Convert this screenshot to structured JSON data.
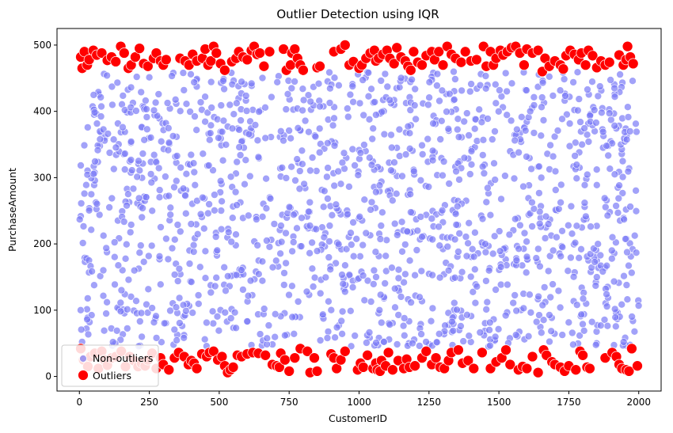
{
  "chart_data": {
    "type": "scatter",
    "title": "Outlier Detection using IQR",
    "xlabel": "CustomerID",
    "ylabel": "PurchaseAmount",
    "xlim": [
      -80,
      2080
    ],
    "ylim": [
      -22,
      525
    ],
    "x_ticks": [
      0,
      250,
      500,
      750,
      1000,
      1250,
      1500,
      1750,
      2000
    ],
    "y_ticks": [
      0,
      100,
      200,
      300,
      400,
      500
    ],
    "grid": false,
    "legend_placement": "lower-left",
    "series": [
      {
        "name": "Non-outliers",
        "color": "#7b7bf7",
        "generated_points": {
          "count": 1540,
          "x_range": [
            1,
            2000
          ],
          "y_range": [
            45,
            460
          ],
          "distribution": "uniform"
        }
      },
      {
        "name": "Outliers",
        "color": "#ff0000",
        "points": [
          [
            5,
            482
          ],
          [
            10,
            465
          ],
          [
            18,
            490
          ],
          [
            28,
            470
          ],
          [
            35,
            478
          ],
          [
            50,
            492
          ],
          [
            62,
            485
          ],
          [
            80,
            488
          ],
          [
            100,
            477
          ],
          [
            115,
            482
          ],
          [
            130,
            475
          ],
          [
            148,
            498
          ],
          [
            160,
            488
          ],
          [
            175,
            465
          ],
          [
            185,
            470
          ],
          [
            200,
            482
          ],
          [
            215,
            495
          ],
          [
            230,
            472
          ],
          [
            245,
            468
          ],
          [
            265,
            480
          ],
          [
            275,
            488
          ],
          [
            290,
            476
          ],
          [
            300,
            470
          ],
          [
            310,
            478
          ],
          [
            360,
            480
          ],
          [
            378,
            476
          ],
          [
            392,
            470
          ],
          [
            405,
            486
          ],
          [
            420,
            476
          ],
          [
            440,
            480
          ],
          [
            450,
            494
          ],
          [
            460,
            470
          ],
          [
            470,
            476
          ],
          [
            480,
            498
          ],
          [
            490,
            488
          ],
          [
            505,
            472
          ],
          [
            520,
            462
          ],
          [
            545,
            475
          ],
          [
            560,
            480
          ],
          [
            570,
            490
          ],
          [
            585,
            482
          ],
          [
            600,
            478
          ],
          [
            615,
            492
          ],
          [
            625,
            498
          ],
          [
            635,
            486
          ],
          [
            645,
            488
          ],
          [
            660,
            468
          ],
          [
            680,
            490
          ],
          [
            730,
            494
          ],
          [
            740,
            462
          ],
          [
            755,
            470
          ],
          [
            760,
            488
          ],
          [
            770,
            494
          ],
          [
            780,
            480
          ],
          [
            790,
            470
          ],
          [
            800,
            462
          ],
          [
            850,
            466
          ],
          [
            860,
            468
          ],
          [
            910,
            490
          ],
          [
            935,
            494
          ],
          [
            950,
            500
          ],
          [
            965,
            470
          ],
          [
            980,
            475
          ],
          [
            1000,
            465
          ],
          [
            1010,
            470
          ],
          [
            1025,
            480
          ],
          [
            1040,
            488
          ],
          [
            1055,
            492
          ],
          [
            1060,
            476
          ],
          [
            1070,
            480
          ],
          [
            1085,
            486
          ],
          [
            1100,
            492
          ],
          [
            1110,
            480
          ],
          [
            1125,
            472
          ],
          [
            1135,
            496
          ],
          [
            1150,
            482
          ],
          [
            1165,
            476
          ],
          [
            1175,
            468
          ],
          [
            1185,
            462
          ],
          [
            1195,
            490
          ],
          [
            1210,
            474
          ],
          [
            1225,
            470
          ],
          [
            1240,
            484
          ],
          [
            1260,
            490
          ],
          [
            1270,
            478
          ],
          [
            1285,
            490
          ],
          [
            1300,
            470
          ],
          [
            1315,
            498
          ],
          [
            1330,
            486
          ],
          [
            1345,
            480
          ],
          [
            1365,
            474
          ],
          [
            1380,
            490
          ],
          [
            1400,
            476
          ],
          [
            1420,
            478
          ],
          [
            1445,
            498
          ],
          [
            1455,
            468
          ],
          [
            1470,
            490
          ],
          [
            1480,
            470
          ],
          [
            1490,
            480
          ],
          [
            1505,
            492
          ],
          [
            1515,
            485
          ],
          [
            1530,
            490
          ],
          [
            1545,
            496
          ],
          [
            1560,
            498
          ],
          [
            1575,
            488
          ],
          [
            1590,
            470
          ],
          [
            1600,
            494
          ],
          [
            1620,
            488
          ],
          [
            1640,
            492
          ],
          [
            1655,
            460
          ],
          [
            1665,
            480
          ],
          [
            1680,
            468
          ],
          [
            1700,
            476
          ],
          [
            1720,
            470
          ],
          [
            1730,
            464
          ],
          [
            1740,
            484
          ],
          [
            1755,
            492
          ],
          [
            1770,
            486
          ],
          [
            1785,
            478
          ],
          [
            1795,
            488
          ],
          [
            1810,
            470
          ],
          [
            1820,
            492
          ],
          [
            1835,
            484
          ],
          [
            1850,
            466
          ],
          [
            1865,
            476
          ],
          [
            1880,
            470
          ],
          [
            1895,
            474
          ],
          [
            1930,
            485
          ],
          [
            1945,
            470
          ],
          [
            1955,
            478
          ],
          [
            1960,
            498
          ],
          [
            1970,
            482
          ],
          [
            1980,
            472
          ],
          [
            5,
            42
          ],
          [
            15,
            25
          ],
          [
            30,
            15
          ],
          [
            40,
            30
          ],
          [
            55,
            35
          ],
          [
            68,
            12
          ],
          [
            80,
            38
          ],
          [
            90,
            25
          ],
          [
            100,
            17
          ],
          [
            115,
            28
          ],
          [
            130,
            30
          ],
          [
            150,
            38
          ],
          [
            165,
            15
          ],
          [
            180,
            30
          ],
          [
            195,
            24
          ],
          [
            210,
            15
          ],
          [
            222,
            20
          ],
          [
            235,
            16
          ],
          [
            245,
            25
          ],
          [
            260,
            35
          ],
          [
            275,
            12
          ],
          [
            290,
            28
          ],
          [
            300,
            18
          ],
          [
            320,
            10
          ],
          [
            340,
            28
          ],
          [
            355,
            36
          ],
          [
            375,
            30
          ],
          [
            390,
            18
          ],
          [
            400,
            24
          ],
          [
            410,
            20
          ],
          [
            420,
            12
          ],
          [
            438,
            34
          ],
          [
            455,
            30
          ],
          [
            465,
            36
          ],
          [
            480,
            38
          ],
          [
            495,
            25
          ],
          [
            510,
            30
          ],
          [
            520,
            16
          ],
          [
            530,
            6
          ],
          [
            540,
            10
          ],
          [
            550,
            14
          ],
          [
            565,
            32
          ],
          [
            580,
            30
          ],
          [
            600,
            34
          ],
          [
            620,
            36
          ],
          [
            640,
            35
          ],
          [
            665,
            32
          ],
          [
            690,
            18
          ],
          [
            705,
            16
          ],
          [
            715,
            14
          ],
          [
            720,
            35
          ],
          [
            735,
            25
          ],
          [
            750,
            8
          ],
          [
            770,
            28
          ],
          [
            790,
            42
          ],
          [
            815,
            38
          ],
          [
            825,
            6
          ],
          [
            840,
            28
          ],
          [
            850,
            8
          ],
          [
            900,
            34
          ],
          [
            910,
            28
          ],
          [
            920,
            12
          ],
          [
            935,
            25
          ],
          [
            950,
            38
          ],
          [
            995,
            10
          ],
          [
            1005,
            20
          ],
          [
            1015,
            14
          ],
          [
            1030,
            32
          ],
          [
            1050,
            12
          ],
          [
            1060,
            20
          ],
          [
            1065,
            10
          ],
          [
            1075,
            8
          ],
          [
            1080,
            24
          ],
          [
            1095,
            16
          ],
          [
            1105,
            36
          ],
          [
            1120,
            10
          ],
          [
            1140,
            24
          ],
          [
            1160,
            12
          ],
          [
            1170,
            26
          ],
          [
            1180,
            14
          ],
          [
            1200,
            16
          ],
          [
            1225,
            28
          ],
          [
            1240,
            38
          ],
          [
            1260,
            18
          ],
          [
            1275,
            28
          ],
          [
            1290,
            14
          ],
          [
            1305,
            12
          ],
          [
            1320,
            24
          ],
          [
            1330,
            36
          ],
          [
            1355,
            40
          ],
          [
            1370,
            20
          ],
          [
            1390,
            24
          ],
          [
            1410,
            12
          ],
          [
            1440,
            36
          ],
          [
            1470,
            12
          ],
          [
            1490,
            22
          ],
          [
            1510,
            28
          ],
          [
            1525,
            40
          ],
          [
            1540,
            18
          ],
          [
            1570,
            10
          ],
          [
            1585,
            15
          ],
          [
            1600,
            12
          ],
          [
            1620,
            30
          ],
          [
            1640,
            6
          ],
          [
            1660,
            40
          ],
          [
            1670,
            32
          ],
          [
            1690,
            22
          ],
          [
            1700,
            18
          ],
          [
            1720,
            14
          ],
          [
            1735,
            8
          ],
          [
            1750,
            16
          ],
          [
            1775,
            10
          ],
          [
            1790,
            38
          ],
          [
            1800,
            32
          ],
          [
            1815,
            14
          ],
          [
            1825,
            12
          ],
          [
            1880,
            28
          ],
          [
            1905,
            36
          ],
          [
            1920,
            30
          ],
          [
            1930,
            18
          ],
          [
            1940,
            12
          ],
          [
            1955,
            10
          ],
          [
            1965,
            8
          ],
          [
            1975,
            42
          ],
          [
            1995,
            16
          ]
        ]
      }
    ],
    "legend": [
      {
        "label": "Non-outliers",
        "color": "#7b7bf7"
      },
      {
        "label": "Outliers",
        "color": "#ff0000"
      }
    ]
  }
}
